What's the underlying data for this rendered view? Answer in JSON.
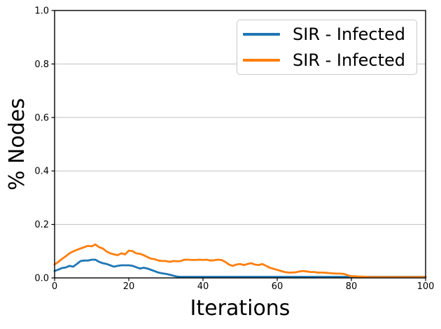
{
  "figure": {
    "background": "#ffffff",
    "xlabel": "Iterations",
    "ylabel": "% Nodes"
  },
  "legend": {
    "position": "upper right",
    "entries": [
      {
        "label": "SIR - Infected",
        "color": "#1f77b4"
      },
      {
        "label": "SIR - Infected",
        "color": "#ff7f0e"
      }
    ]
  },
  "chart_data": {
    "type": "line",
    "title": "",
    "xlabel": "Iterations",
    "ylabel": "% Nodes",
    "xlim": [
      0,
      100
    ],
    "ylim": [
      0.0,
      1.0
    ],
    "x_ticks": [
      0,
      20,
      40,
      60,
      80,
      100
    ],
    "y_tick_labels": [
      "0.0",
      "0.2",
      "0.4",
      "0.6",
      "0.8",
      "1.0"
    ],
    "grid": "horizontal",
    "grid_color": "#c0c0c0",
    "axis_color": "#000000",
    "legend_position": "upper right",
    "series": [
      {
        "name": "SIR - Infected",
        "color": "#1f77b4",
        "x_start": 0,
        "x_step": 1,
        "values": [
          0.026,
          0.031,
          0.037,
          0.039,
          0.045,
          0.042,
          0.052,
          0.063,
          0.065,
          0.065,
          0.068,
          0.068,
          0.06,
          0.055,
          0.052,
          0.047,
          0.042,
          0.045,
          0.047,
          0.047,
          0.047,
          0.045,
          0.04,
          0.035,
          0.038,
          0.035,
          0.03,
          0.025,
          0.02,
          0.017,
          0.015,
          0.012,
          0.008,
          0.005,
          0.004,
          0.004,
          0.004,
          0.004,
          0.004,
          0.004,
          0.004,
          0.004,
          0.004,
          0.004,
          0.004,
          0.004,
          0.004,
          0.004,
          0.004,
          0.004,
          0.004,
          0.004,
          0.004,
          0.004,
          0.004,
          0.004,
          0.004,
          0.004,
          0.004,
          0.004,
          0.004,
          0.004,
          0.004,
          0.004,
          0.004,
          0.004,
          0.004,
          0.004,
          0.004,
          0.004,
          0.004,
          0.004,
          0.004,
          0.004,
          0.004,
          0.004,
          0.004,
          0.004,
          0.004,
          0.004,
          0.004,
          0.004,
          0.004,
          0.004,
          0.004,
          0.004,
          0.004,
          0.004,
          0.004,
          0.004,
          0.004,
          0.004,
          0.004,
          0.004,
          0.004,
          0.004,
          0.004,
          0.004,
          0.004,
          0.004,
          0.004
        ]
      },
      {
        "name": "SIR - Infected",
        "color": "#ff7f0e",
        "x_start": 0,
        "x_step": 1,
        "values": [
          0.05,
          0.06,
          0.071,
          0.081,
          0.092,
          0.099,
          0.105,
          0.11,
          0.115,
          0.12,
          0.118,
          0.125,
          0.115,
          0.11,
          0.099,
          0.092,
          0.088,
          0.085,
          0.092,
          0.088,
          0.102,
          0.1,
          0.092,
          0.09,
          0.085,
          0.078,
          0.072,
          0.07,
          0.065,
          0.063,
          0.063,
          0.06,
          0.063,
          0.062,
          0.063,
          0.068,
          0.068,
          0.067,
          0.067,
          0.068,
          0.067,
          0.068,
          0.065,
          0.066,
          0.068,
          0.067,
          0.06,
          0.05,
          0.045,
          0.05,
          0.052,
          0.048,
          0.052,
          0.055,
          0.05,
          0.048,
          0.052,
          0.045,
          0.038,
          0.034,
          0.03,
          0.026,
          0.022,
          0.02,
          0.02,
          0.021,
          0.024,
          0.026,
          0.024,
          0.022,
          0.022,
          0.02,
          0.02,
          0.019,
          0.018,
          0.017,
          0.016,
          0.016,
          0.015,
          0.01,
          0.006,
          0.006,
          0.005,
          0.005,
          0.004,
          0.003,
          0.003,
          0.003,
          0.003,
          0.003,
          0.003,
          0.003,
          0.003,
          0.003,
          0.003,
          0.003,
          0.003,
          0.003,
          0.003,
          0.003,
          0.003
        ]
      }
    ]
  }
}
